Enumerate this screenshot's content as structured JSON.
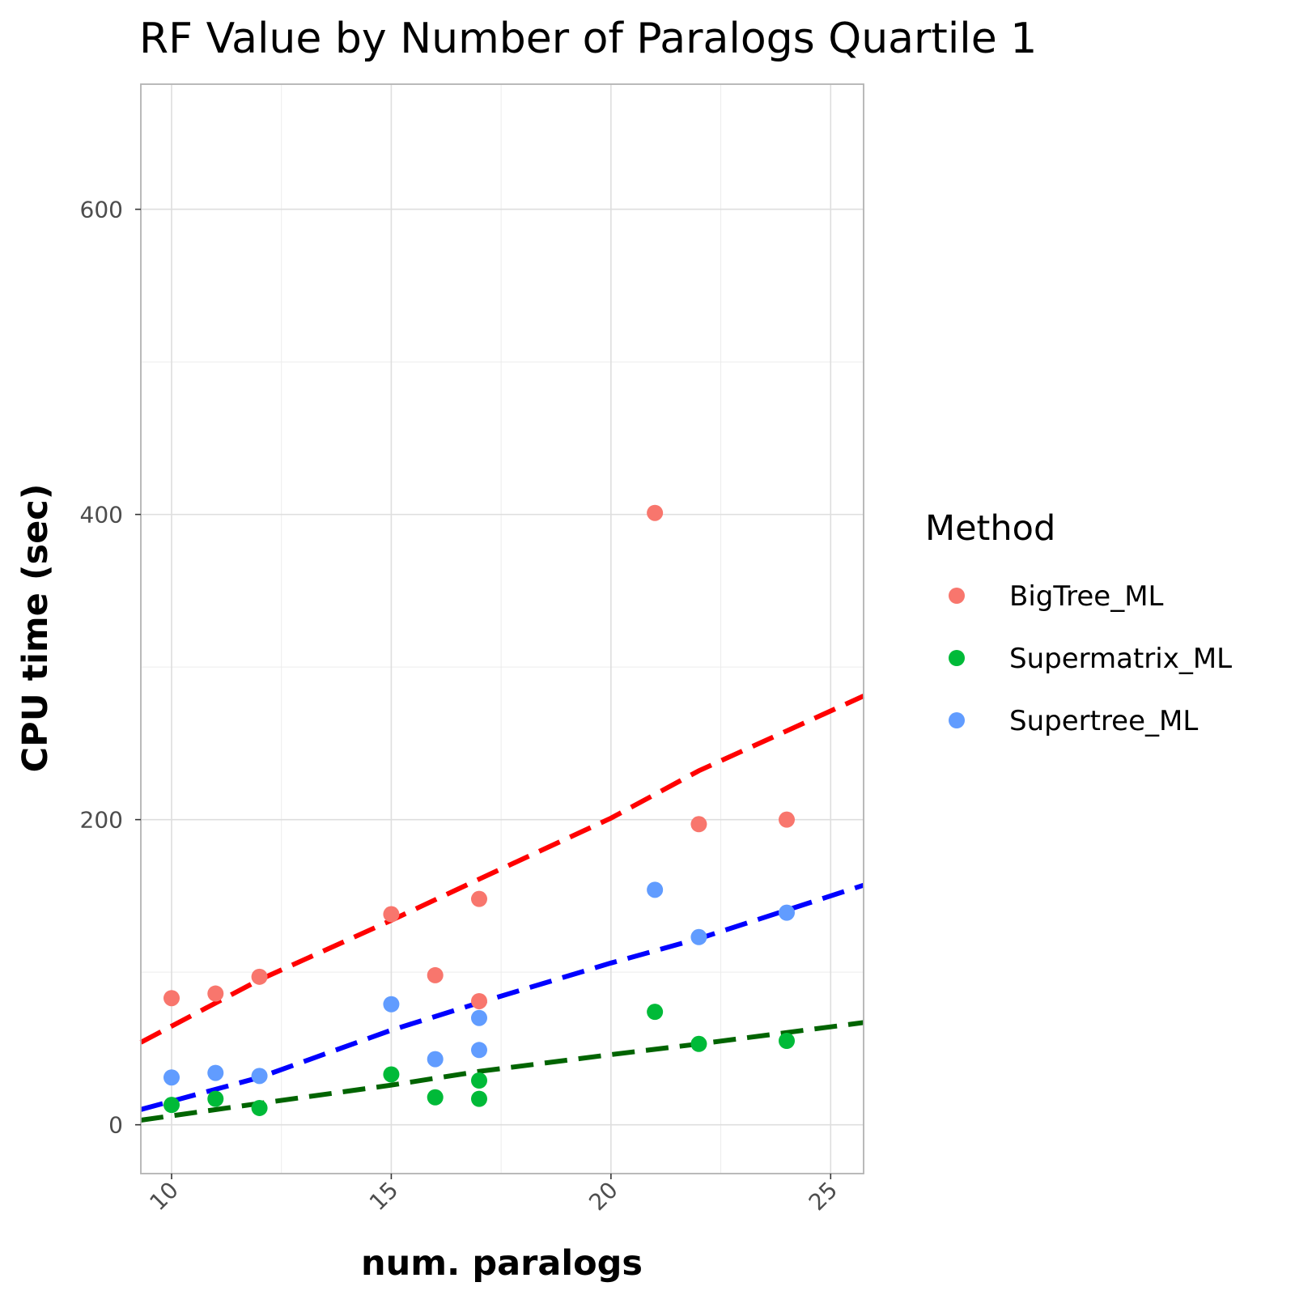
{
  "chart_data": {
    "type": "scatter",
    "title": "RF Value by Number of Paralogs Quartile 1",
    "xlabel": "num. paralogs",
    "ylabel": "CPU time (sec)",
    "xlim": [
      9.3,
      25.75
    ],
    "ylim": [
      -32,
      682
    ],
    "xticks": [
      10,
      15,
      20,
      25
    ],
    "xtick_labels": [
      "10",
      "15",
      "20",
      "25"
    ],
    "xminor": [
      12.5,
      17.5,
      22.5
    ],
    "yticks": [
      0,
      200,
      400,
      600
    ],
    "ytick_labels": [
      "0",
      "200",
      "400",
      "600"
    ],
    "yminor": [
      100,
      300,
      500
    ],
    "grid": true,
    "legend": {
      "title": "Method",
      "placement": "right"
    },
    "series": [
      {
        "name": "BigTree_ML",
        "color": "#F8766D",
        "x": [
          10,
          11,
          12,
          15,
          16,
          17,
          17,
          21,
          22,
          24
        ],
        "y": [
          83,
          86,
          97,
          138,
          98,
          148,
          81,
          401,
          197,
          200
        ]
      },
      {
        "name": "Supermatrix_ML",
        "color": "#00BA38",
        "x": [
          10,
          11,
          12,
          15,
          16,
          17,
          17,
          21,
          22,
          24
        ],
        "y": [
          13,
          17,
          11,
          33,
          18,
          29,
          17,
          74,
          53,
          55
        ]
      },
      {
        "name": "Supertree_ML",
        "color": "#619CFF",
        "x": [
          10,
          11,
          12,
          15,
          16,
          17,
          17,
          21,
          22,
          24
        ],
        "y": [
          31,
          34,
          32,
          79,
          43,
          70,
          49,
          154,
          123,
          139
        ]
      }
    ],
    "trend_lines": [
      {
        "name": "BigTree_ML",
        "color": "#FF0000",
        "style": "dashed",
        "x": [
          9.3,
          12,
          15,
          17,
          20,
          22,
          25.75
        ],
        "y": [
          54,
          95,
          134,
          161,
          201,
          232,
          281
        ]
      },
      {
        "name": "Supertree_ML",
        "color": "#0000FF",
        "style": "dashed",
        "x": [
          9.3,
          12,
          15,
          17,
          20,
          22,
          25.75
        ],
        "y": [
          10,
          31,
          62,
          80,
          106,
          122,
          157
        ]
      },
      {
        "name": "Supermatrix_ML",
        "color": "#006400",
        "style": "dashed",
        "x": [
          9.3,
          12,
          15,
          17,
          20,
          22,
          25.75
        ],
        "y": [
          3,
          14,
          26,
          35,
          46,
          53,
          67
        ]
      }
    ]
  }
}
